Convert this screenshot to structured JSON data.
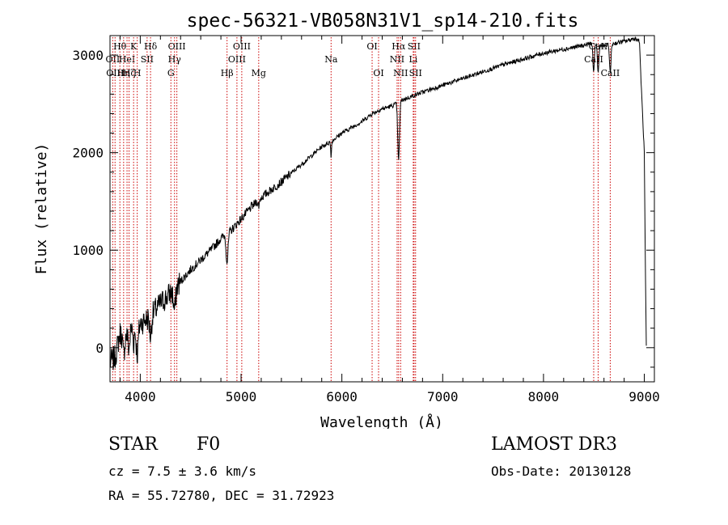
{
  "chart_data": {
    "type": "line",
    "title": "spec-56321-VB058N31V1_sp14-210.fits",
    "xlabel": "Wavelength (Å)",
    "ylabel": "Flux (relative)",
    "xlim": [
      3700,
      9100
    ],
    "ylim": [
      -350,
      3200
    ],
    "x_ticks": [
      4000,
      5000,
      6000,
      7000,
      8000,
      9000
    ],
    "y_ticks": [
      0,
      1000,
      2000,
      3000
    ],
    "line_color": "#000000",
    "marker_line_color": "#cc0000",
    "spectrum_anchors": [
      [
        3700,
        -150
      ],
      [
        3750,
        -100
      ],
      [
        3800,
        150
      ],
      [
        3850,
        100
      ],
      [
        3900,
        200
      ],
      [
        3970,
        180
      ],
      [
        4000,
        250
      ],
      [
        4100,
        320
      ],
      [
        4200,
        450
      ],
      [
        4300,
        560
      ],
      [
        4400,
        680
      ],
      [
        4500,
        800
      ],
      [
        4600,
        900
      ],
      [
        4700,
        1000
      ],
      [
        4800,
        1120
      ],
      [
        4860,
        1180
      ],
      [
        4900,
        1200
      ],
      [
        5000,
        1320
      ],
      [
        5100,
        1440
      ],
      [
        5200,
        1540
      ],
      [
        5300,
        1620
      ],
      [
        5400,
        1700
      ],
      [
        5500,
        1790
      ],
      [
        5600,
        1880
      ],
      [
        5700,
        1970
      ],
      [
        5800,
        2060
      ],
      [
        5900,
        2120
      ],
      [
        6000,
        2200
      ],
      [
        6100,
        2260
      ],
      [
        6200,
        2320
      ],
      [
        6300,
        2400
      ],
      [
        6400,
        2450
      ],
      [
        6500,
        2480
      ],
      [
        6600,
        2540
      ],
      [
        6700,
        2580
      ],
      [
        6800,
        2620
      ],
      [
        7000,
        2690
      ],
      [
        7200,
        2760
      ],
      [
        7400,
        2830
      ],
      [
        7600,
        2900
      ],
      [
        7800,
        2960
      ],
      [
        8000,
        3020
      ],
      [
        8200,
        3060
      ],
      [
        8400,
        3100
      ],
      [
        8500,
        3130
      ],
      [
        8600,
        3090
      ],
      [
        8700,
        3120
      ],
      [
        8800,
        3140
      ],
      [
        8900,
        3170
      ],
      [
        8950,
        3150
      ],
      [
        9000,
        2000
      ],
      [
        9010,
        900
      ],
      [
        9020,
        0
      ]
    ],
    "absorption_dips": [
      {
        "center": 3835,
        "depth": 200,
        "width": 12
      },
      {
        "center": 3889,
        "depth": 200,
        "width": 12
      },
      {
        "center": 3934,
        "depth": 150,
        "width": 8
      },
      {
        "center": 3970,
        "depth": 250,
        "width": 14
      },
      {
        "center": 4102,
        "depth": 200,
        "width": 14
      },
      {
        "center": 4340,
        "depth": 220,
        "width": 16
      },
      {
        "center": 4861,
        "depth": 300,
        "width": 14
      },
      {
        "center": 5175,
        "depth": 60,
        "width": 10
      },
      {
        "center": 5893,
        "depth": 150,
        "width": 6
      },
      {
        "center": 6563,
        "depth": 600,
        "width": 12
      },
      {
        "center": 8498,
        "depth": 320,
        "width": 10
      },
      {
        "center": 8542,
        "depth": 300,
        "width": 10
      },
      {
        "center": 8662,
        "depth": 300,
        "width": 10
      }
    ],
    "markers": [
      {
        "x": 3727,
        "label": "OII",
        "row": 1
      },
      {
        "x": 3750,
        "label": "OIII",
        "row": 2
      },
      {
        "x": 3798,
        "label": "Hθ",
        "row": 0
      },
      {
        "x": 3835,
        "label": "Hη",
        "row": 2
      },
      {
        "x": 3869,
        "label": "HeI",
        "row": 1
      },
      {
        "x": 3889,
        "label": "Hζ",
        "row": 2
      },
      {
        "x": 3934,
        "label": "K",
        "row": 0
      },
      {
        "x": 3970,
        "label": "H",
        "row": 2
      },
      {
        "x": 4068,
        "label": "SII",
        "row": 1
      },
      {
        "x": 4102,
        "label": "Hδ",
        "row": 0
      },
      {
        "x": 4304,
        "label": "G",
        "row": 2
      },
      {
        "x": 4340,
        "label": "Hγ",
        "row": 1
      },
      {
        "x": 4363,
        "label": "OIII",
        "row": 0
      },
      {
        "x": 4861,
        "label": "Hβ",
        "row": 2
      },
      {
        "x": 4959,
        "label": "OIII",
        "row": 1
      },
      {
        "x": 5007,
        "label": "OIII",
        "row": 0
      },
      {
        "x": 5175,
        "label": "Mg",
        "row": 2
      },
      {
        "x": 5893,
        "label": "Na",
        "row": 1
      },
      {
        "x": 6300,
        "label": "OI",
        "row": 0
      },
      {
        "x": 6364,
        "label": "OI",
        "row": 2
      },
      {
        "x": 6548,
        "label": "NII",
        "row": 1
      },
      {
        "x": 6563,
        "label": "Hα",
        "row": 0
      },
      {
        "x": 6583,
        "label": "NII",
        "row": 2
      },
      {
        "x": 6708,
        "label": "Li",
        "row": 1
      },
      {
        "x": 6716,
        "label": "SII",
        "row": 0
      },
      {
        "x": 6731,
        "label": "SII",
        "row": 2
      },
      {
        "x": 8498,
        "label": "CaII",
        "row": 1
      },
      {
        "x": 8542,
        "label": "CaII",
        "row": 0
      },
      {
        "x": 8662,
        "label": "CaII",
        "row": 2
      }
    ]
  },
  "info": {
    "object_type": "STAR",
    "spectral_class": "F0",
    "velocity": "cz = 7.5 ± 3.6 km/s",
    "coordinates": "RA =  55.72780, DEC =  31.72923",
    "survey": "LAMOST DR3",
    "obs_date": "Obs-Date: 20130128"
  }
}
